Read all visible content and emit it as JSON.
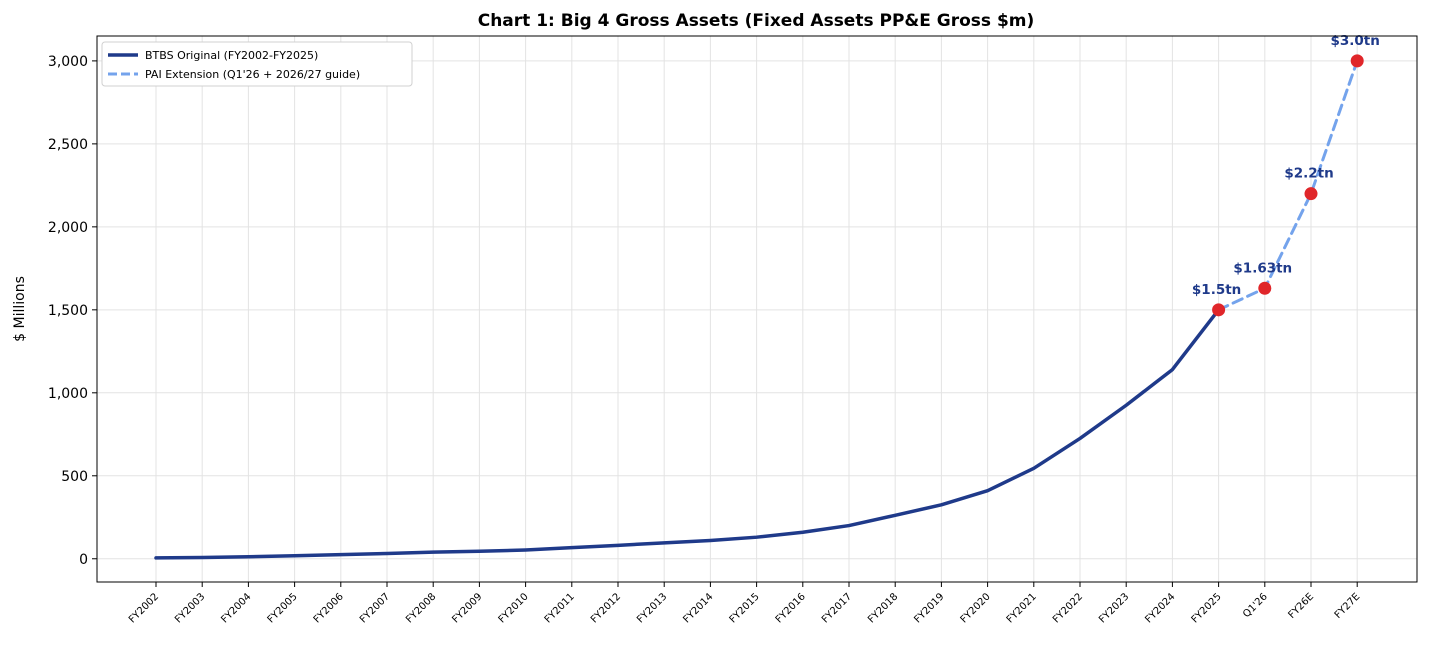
{
  "chart_data": {
    "type": "line",
    "title": "Chart 1: Big 4 Gross Assets (Fixed Assets PP&E Gross $m)",
    "xlabel": "",
    "ylabel": "$ Millions",
    "ylim": [
      -140,
      3150
    ],
    "yticks": [
      0,
      500,
      1000,
      1500,
      2000,
      2500,
      3000
    ],
    "ytick_labels": [
      "0",
      "500",
      "1,000",
      "1,500",
      "2,000",
      "2,500",
      "3,000"
    ],
    "categories": [
      "FY2002",
      "FY2003",
      "FY2004",
      "FY2005",
      "FY2006",
      "FY2007",
      "FY2008",
      "FY2009",
      "FY2010",
      "FY2011",
      "FY2012",
      "FY2013",
      "FY2014",
      "FY2015",
      "FY2016",
      "FY2017",
      "FY2018",
      "FY2019",
      "FY2020",
      "FY2021",
      "FY2022",
      "FY2023",
      "FY2024",
      "FY2025",
      "Q1'26",
      "FY26E",
      "FY27E"
    ],
    "grid": true,
    "legend_position": "top-left",
    "series": [
      {
        "name": "BTBS Original (FY2002-FY2025)",
        "style": "solid",
        "color": "#1f3a8a",
        "x": [
          "FY2002",
          "FY2003",
          "FY2004",
          "FY2005",
          "FY2006",
          "FY2007",
          "FY2008",
          "FY2009",
          "FY2010",
          "FY2011",
          "FY2012",
          "FY2013",
          "FY2014",
          "FY2015",
          "FY2016",
          "FY2017",
          "FY2018",
          "FY2019",
          "FY2020",
          "FY2021",
          "FY2022",
          "FY2023",
          "FY2024",
          "FY2025"
        ],
        "values": [
          5,
          8,
          12,
          18,
          25,
          32,
          40,
          45,
          53,
          67,
          81,
          96,
          110,
          130,
          160,
          200,
          262,
          325,
          410,
          545,
          725,
          925,
          1140,
          1500
        ]
      },
      {
        "name": "PAI Extension (Q1'26 + 2026/27 guide)",
        "style": "dashed",
        "color": "#74a3ec",
        "x": [
          "FY2025",
          "Q1'26",
          "FY26E",
          "FY27E"
        ],
        "values": [
          1500,
          1630,
          2200,
          3000
        ]
      }
    ],
    "highlight_points": {
      "color": "#e0262a",
      "points": [
        {
          "x": "FY2025",
          "value": 1500,
          "label": "$1.5tn"
        },
        {
          "x": "Q1'26",
          "value": 1630,
          "label": "$1.63tn"
        },
        {
          "x": "FY26E",
          "value": 2200,
          "label": "$2.2tn"
        },
        {
          "x": "FY27E",
          "value": 3000,
          "label": "$3.0tn"
        }
      ]
    },
    "annotation_color": "#1f3a8a"
  }
}
